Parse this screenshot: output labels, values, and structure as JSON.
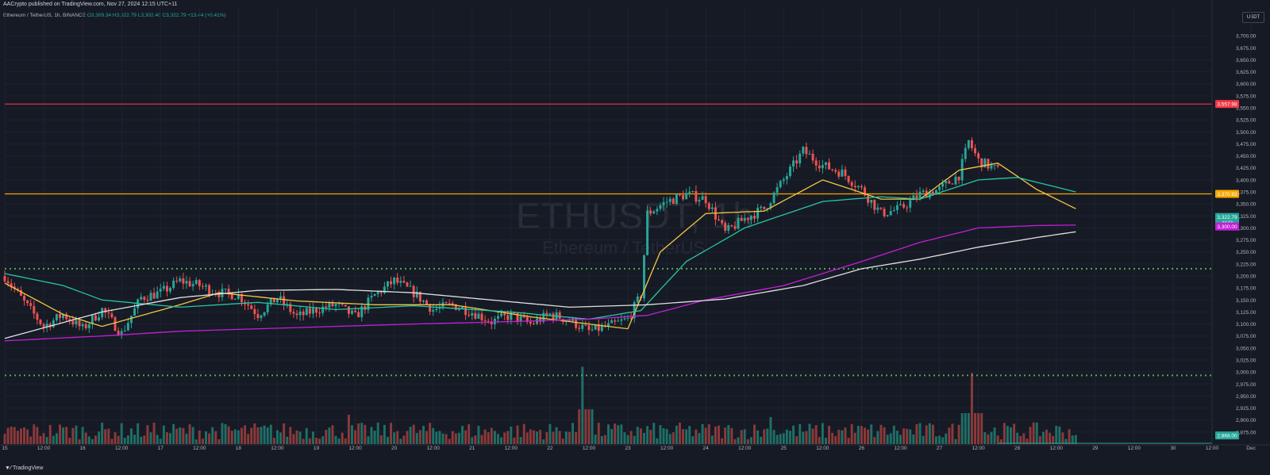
{
  "header": {
    "published": "AACrypto published on TradingView.com, Nov 27, 2024 12:15 UTC+11",
    "symbol_line": "Ethereum / TetherUS, 1h, BINANCE",
    "open": "O3,309.34",
    "high": "H3,322.79",
    "low": "L3,302.40",
    "close": "C3,322.79",
    "change": "+13.44 (+0.41%)",
    "currency": "USDT"
  },
  "watermark": {
    "main": "ETHUSDT, 1h",
    "sub": "Ethereum / TetherUS"
  },
  "footer": {
    "brand": "TradingView"
  },
  "colors": {
    "bg": "#161a25",
    "up": "#26a69a",
    "down": "#ef5350",
    "red_line": "#f23645",
    "orange_line": "#f7a600",
    "green_dotted": "#4caf50",
    "ema_yellow": "#f5c542",
    "ema_teal": "#26c6a0",
    "ma_magenta": "#c21fd6",
    "ma_white": "#e0e0e0"
  },
  "chart_data": {
    "type": "candlestick",
    "title": "ETHUSDT, 1h",
    "ylim": [
      2850,
      3725
    ],
    "y_ticks": [
      "3,700.00",
      "3,675.00",
      "3,650.00",
      "3,625.00",
      "3,600.00",
      "3,575.00",
      "3,550.00",
      "3,525.00",
      "3,500.00",
      "3,475.00",
      "3,450.00",
      "3,425.00",
      "3,400.00",
      "3,375.00",
      "3,350.00",
      "3,325.00",
      "3,300.00",
      "3,275.00",
      "3,250.00",
      "3,225.00",
      "3,200.00",
      "3,175.00",
      "3,150.00",
      "3,125.00",
      "3,100.00",
      "3,075.00",
      "3,050.00",
      "3,025.00",
      "3,000.00",
      "2,975.00",
      "2,950.00",
      "2,925.00",
      "2,900.00",
      "2,875.00"
    ],
    "x_ticks": [
      "15",
      "12:00",
      "16",
      "12:00",
      "17",
      "12:00",
      "18",
      "12:00",
      "19",
      "12:00",
      "20",
      "12:00",
      "21",
      "12:00",
      "22",
      "12:00",
      "23",
      "12:00",
      "24",
      "12:00",
      "25",
      "12:00",
      "26",
      "12:00",
      "27",
      "12:00",
      "28",
      "12:00",
      "29",
      "12:00",
      "30",
      "12:00",
      "Dec"
    ],
    "x_range_hours": [
      -6,
      366
    ],
    "last_bar_hour": 300,
    "horizontal_levels": [
      {
        "name": "resistance-red",
        "value": 3557.98,
        "label": "3,557.98",
        "style": "solid"
      },
      {
        "name": "level-orange",
        "value": 3370.93,
        "label": "3,370.93",
        "style": "solid"
      },
      {
        "name": "support-dotted-upper",
        "value": 3215,
        "style": "dotted"
      },
      {
        "name": "support-dotted-lower",
        "value": 2993,
        "style": "dotted"
      }
    ],
    "price_tags": [
      {
        "label": "3,322.79",
        "sub": "44:43",
        "value": 3322.79,
        "color": "#26a69a"
      },
      {
        "label": "3,300.00",
        "value": 3303,
        "color": "#c21fd6"
      },
      {
        "label": "2,868.00",
        "value": 2868,
        "color": "#26a69a"
      }
    ],
    "price_path": [
      [
        -6,
        3200
      ],
      [
        0,
        3145
      ],
      [
        6,
        3095
      ],
      [
        12,
        3120
      ],
      [
        18,
        3090
      ],
      [
        24,
        3130
      ],
      [
        30,
        3080
      ],
      [
        36,
        3155
      ],
      [
        42,
        3165
      ],
      [
        48,
        3190
      ],
      [
        54,
        3180
      ],
      [
        60,
        3165
      ],
      [
        66,
        3160
      ],
      [
        72,
        3120
      ],
      [
        78,
        3155
      ],
      [
        84,
        3115
      ],
      [
        90,
        3130
      ],
      [
        96,
        3140
      ],
      [
        102,
        3115
      ],
      [
        108,
        3160
      ],
      [
        114,
        3190
      ],
      [
        120,
        3165
      ],
      [
        126,
        3130
      ],
      [
        132,
        3140
      ],
      [
        138,
        3125
      ],
      [
        144,
        3105
      ],
      [
        150,
        3118
      ],
      [
        156,
        3100
      ],
      [
        162,
        3120
      ],
      [
        168,
        3108
      ],
      [
        174,
        3085
      ],
      [
        180,
        3095
      ],
      [
        186,
        3110
      ],
      [
        190,
        3160
      ],
      [
        192,
        3330
      ],
      [
        198,
        3355
      ],
      [
        204,
        3370
      ],
      [
        210,
        3360
      ],
      [
        216,
        3290
      ],
      [
        222,
        3320
      ],
      [
        228,
        3340
      ],
      [
        234,
        3400
      ],
      [
        240,
        3460
      ],
      [
        246,
        3430
      ],
      [
        252,
        3415
      ],
      [
        258,
        3380
      ],
      [
        264,
        3330
      ],
      [
        270,
        3340
      ],
      [
        276,
        3370
      ],
      [
        282,
        3380
      ],
      [
        288,
        3410
      ],
      [
        291,
        3480
      ],
      [
        294,
        3440
      ],
      [
        300,
        3420
      ],
      [
        306,
        3400
      ],
      [
        312,
        3330
      ],
      [
        318,
        3310
      ],
      [
        324,
        3322.79
      ]
    ],
    "series": [
      {
        "name": "ema-fast",
        "color": "#f5c542",
        "points": [
          [
            -6,
            3185
          ],
          [
            12,
            3120
          ],
          [
            24,
            3095
          ],
          [
            48,
            3140
          ],
          [
            60,
            3165
          ],
          [
            84,
            3148
          ],
          [
            108,
            3140
          ],
          [
            132,
            3140
          ],
          [
            156,
            3115
          ],
          [
            174,
            3100
          ],
          [
            186,
            3090
          ],
          [
            196,
            3250
          ],
          [
            210,
            3330
          ],
          [
            228,
            3335
          ],
          [
            246,
            3400
          ],
          [
            264,
            3360
          ],
          [
            276,
            3360
          ],
          [
            288,
            3420
          ],
          [
            300,
            3435
          ],
          [
            312,
            3380
          ],
          [
            324,
            3340
          ]
        ]
      },
      {
        "name": "ema-mid",
        "color": "#26c6a0",
        "points": [
          [
            -6,
            3205
          ],
          [
            12,
            3180
          ],
          [
            24,
            3150
          ],
          [
            48,
            3135
          ],
          [
            72,
            3145
          ],
          [
            96,
            3130
          ],
          [
            120,
            3138
          ],
          [
            150,
            3125
          ],
          [
            174,
            3110
          ],
          [
            190,
            3128
          ],
          [
            204,
            3230
          ],
          [
            222,
            3300
          ],
          [
            246,
            3355
          ],
          [
            264,
            3365
          ],
          [
            276,
            3360
          ],
          [
            294,
            3400
          ],
          [
            306,
            3405
          ],
          [
            324,
            3375
          ]
        ]
      },
      {
        "name": "ma-magenta",
        "color": "#c21fd6",
        "points": [
          [
            -6,
            3065
          ],
          [
            24,
            3075
          ],
          [
            48,
            3085
          ],
          [
            72,
            3090
          ],
          [
            96,
            3095
          ],
          [
            120,
            3100
          ],
          [
            150,
            3105
          ],
          [
            174,
            3110
          ],
          [
            192,
            3118
          ],
          [
            210,
            3150
          ],
          [
            234,
            3180
          ],
          [
            258,
            3230
          ],
          [
            276,
            3270
          ],
          [
            294,
            3300
          ],
          [
            312,
            3305
          ],
          [
            324,
            3306
          ]
        ]
      },
      {
        "name": "ma-white",
        "color": "#e0e0e0",
        "points": [
          [
            -6,
            3070
          ],
          [
            24,
            3125
          ],
          [
            48,
            3155
          ],
          [
            72,
            3170
          ],
          [
            96,
            3172
          ],
          [
            120,
            3165
          ],
          [
            144,
            3150
          ],
          [
            168,
            3135
          ],
          [
            192,
            3140
          ],
          [
            216,
            3152
          ],
          [
            240,
            3180
          ],
          [
            258,
            3215
          ],
          [
            276,
            3235
          ],
          [
            294,
            3260
          ],
          [
            312,
            3280
          ],
          [
            324,
            3292
          ]
        ]
      }
    ],
    "volume_bars_count": 330,
    "volume_spikes": [
      {
        "x": 172,
        "rel": 1.0
      },
      {
        "x": 292,
        "rel": 0.92
      },
      {
        "x": 100,
        "rel": 0.38
      },
      {
        "x": 230,
        "rel": 0.35
      }
    ]
  }
}
